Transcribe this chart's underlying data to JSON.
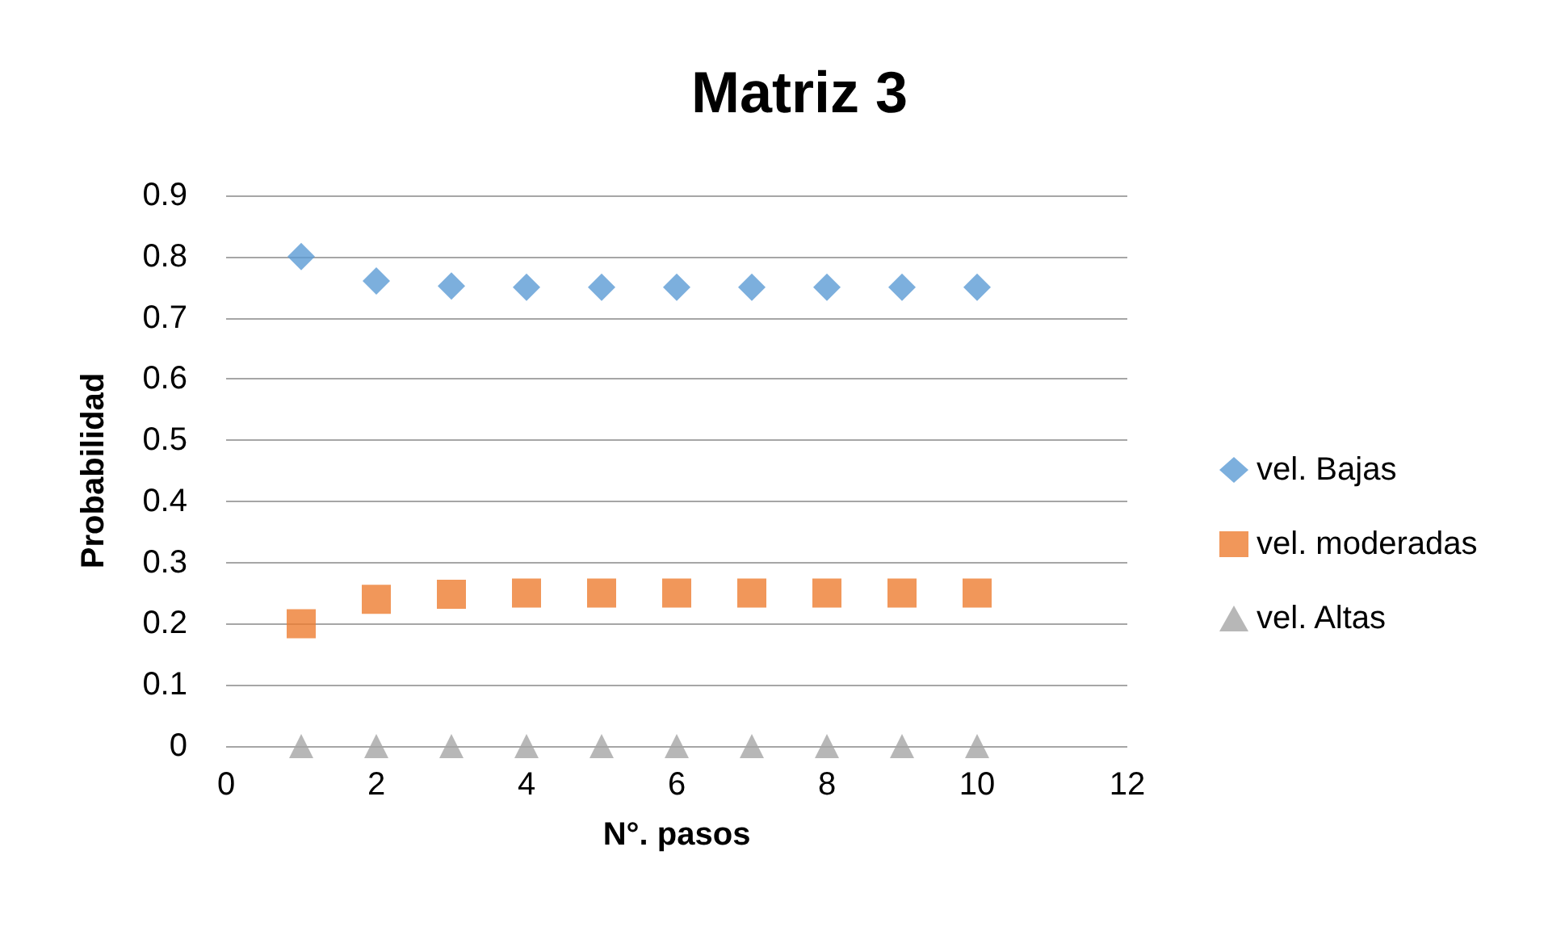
{
  "chart_data": {
    "type": "scatter",
    "title": "Matriz 3",
    "xlabel": "N°. pasos",
    "ylabel": "Probabilidad",
    "xlim": [
      0,
      12
    ],
    "xticks": [
      0,
      2,
      4,
      6,
      8,
      10,
      12
    ],
    "ylim": [
      0,
      0.9
    ],
    "yticks": [
      0,
      0.1,
      0.2,
      0.3,
      0.4,
      0.5,
      0.6,
      0.7,
      0.8,
      0.9
    ],
    "grid": "y",
    "legend": "right",
    "x": [
      1,
      2,
      3,
      4,
      5,
      6,
      7,
      8,
      9,
      10
    ],
    "series": [
      {
        "name": "vel. Bajas",
        "color": "#5b9bd5",
        "marker": "diamond",
        "values": [
          0.8,
          0.76,
          0.752,
          0.75,
          0.75,
          0.75,
          0.75,
          0.75,
          0.75,
          0.75
        ]
      },
      {
        "name": "vel. moderadas",
        "color": "#ed7d31",
        "marker": "square",
        "values": [
          0.2,
          0.24,
          0.248,
          0.25,
          0.25,
          0.25,
          0.25,
          0.25,
          0.25,
          0.25
        ]
      },
      {
        "name": "vel. Altas",
        "color": "#a5a5a5",
        "marker": "triangle",
        "values": [
          0,
          0,
          0,
          0,
          0,
          0,
          0,
          0,
          0,
          0
        ]
      }
    ]
  }
}
